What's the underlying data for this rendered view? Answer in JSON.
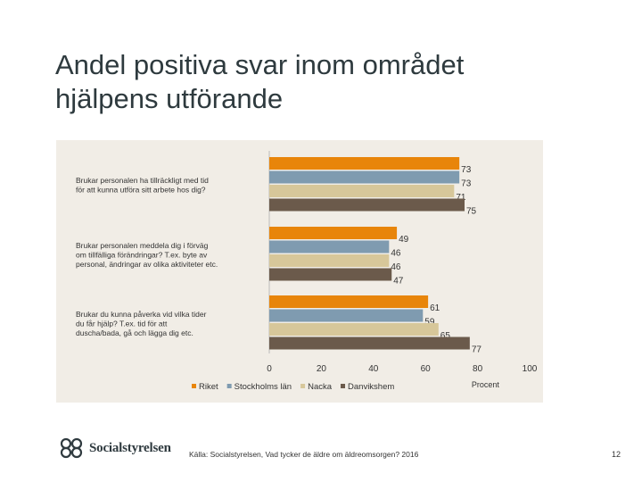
{
  "slide": {
    "title_line1": "Andel positiva svar inom området",
    "title_line2": "hjälpens utförande",
    "source": "Källa: Socialstyrelsen, Vad tycker de äldre om äldreomsorgen? 2016",
    "page_number": "12",
    "logo_text": "Socialstyrelsen"
  },
  "colors": {
    "Riket": "#e8850a",
    "Stockholms län": "#7f9bb0",
    "Nacka": "#d7c79a",
    "Danvikshem": "#6b5a4b",
    "panel": "#f1ede6"
  },
  "chart_data": {
    "type": "bar",
    "orientation": "horizontal",
    "title": "",
    "xlabel": "Procent",
    "ylabel": "",
    "xlim": [
      0,
      100
    ],
    "xticks": [
      "0",
      "20",
      "40",
      "60",
      "80",
      "100"
    ],
    "categories": [
      [
        "Brukar personalen ha tillräckligt med tid",
        "för att kunna utföra sitt arbete hos dig?"
      ],
      [
        "Brukar personalen meddela dig i förväg",
        "om tillfälliga förändringar? T.ex. byte av",
        "personal, ändringar av olika aktiviteter etc."
      ],
      [
        "Brukar du kunna påverka vid vilka tider",
        "du får hjälp? T.ex. tid för att",
        "duscha/bada, gå och lägga dig etc."
      ]
    ],
    "series": [
      {
        "name": "Riket",
        "values": [
          73,
          49,
          61
        ]
      },
      {
        "name": "Stockholms län",
        "values": [
          73,
          46,
          59
        ]
      },
      {
        "name": "Nacka",
        "values": [
          71,
          46,
          65
        ]
      },
      {
        "name": "Danvikshem",
        "values": [
          75,
          47,
          77
        ]
      }
    ],
    "legend_position": "bottom"
  }
}
